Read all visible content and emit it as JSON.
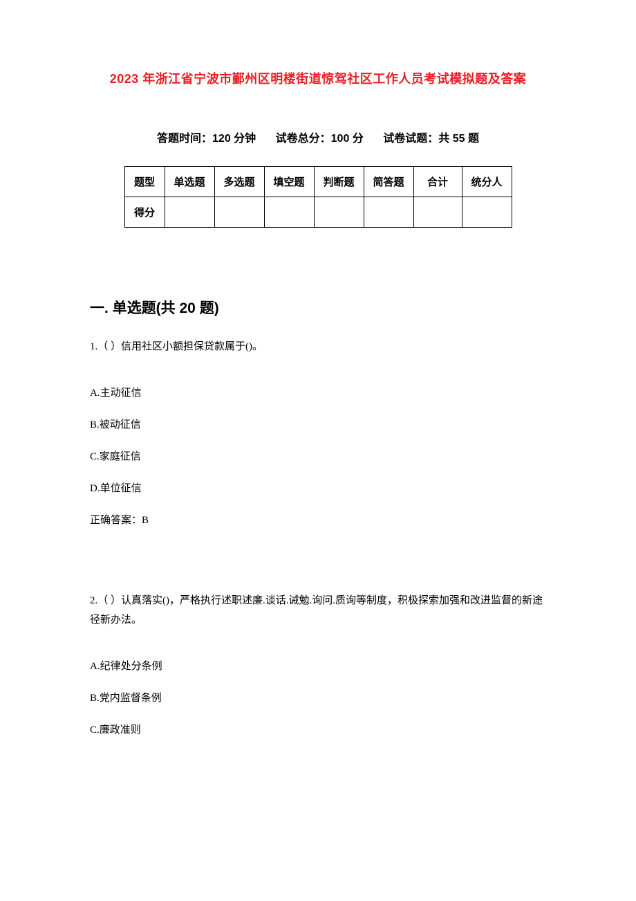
{
  "title": "2023 年浙江省宁波市鄞州区明楼街道惊驾社区工作人员考试模拟题及答案",
  "title_color": "#ed1c24",
  "meta": {
    "time": "答题时间：120 分钟",
    "total": "试卷总分：100 分",
    "count": "试卷试题：共 55 题"
  },
  "score_table": {
    "header": [
      "题型",
      "单选题",
      "多选题",
      "填空题",
      "判断题",
      "简答题",
      "合计",
      "统分人"
    ],
    "row_label": "得分"
  },
  "section1": {
    "heading": "一. 单选题(共 20 题)"
  },
  "q1": {
    "stem": "1.（ ）信用社区小额担保贷款属于()。",
    "optA": "A.主动征信",
    "optB": "B.被动征信",
    "optC": "C.家庭征信",
    "optD": "D.单位征信",
    "answer": "正确答案：B"
  },
  "q2": {
    "stem": "2.（ ）认真落实()，严格执行述职述廉.谈话.诫勉.询问.质询等制度，积极探索加强和改进监督的新途径新办法。",
    "optA": "A.纪律处分条例",
    "optB": "B.党内监督条例",
    "optC": "C.廉政准则"
  },
  "fonts": {
    "title_size": 18,
    "meta_size": 16,
    "heading_size": 21,
    "body_size": 15
  },
  "colors": {
    "background": "#ffffff",
    "text": "#000000",
    "title": "#ed1c24",
    "border": "#000000"
  }
}
